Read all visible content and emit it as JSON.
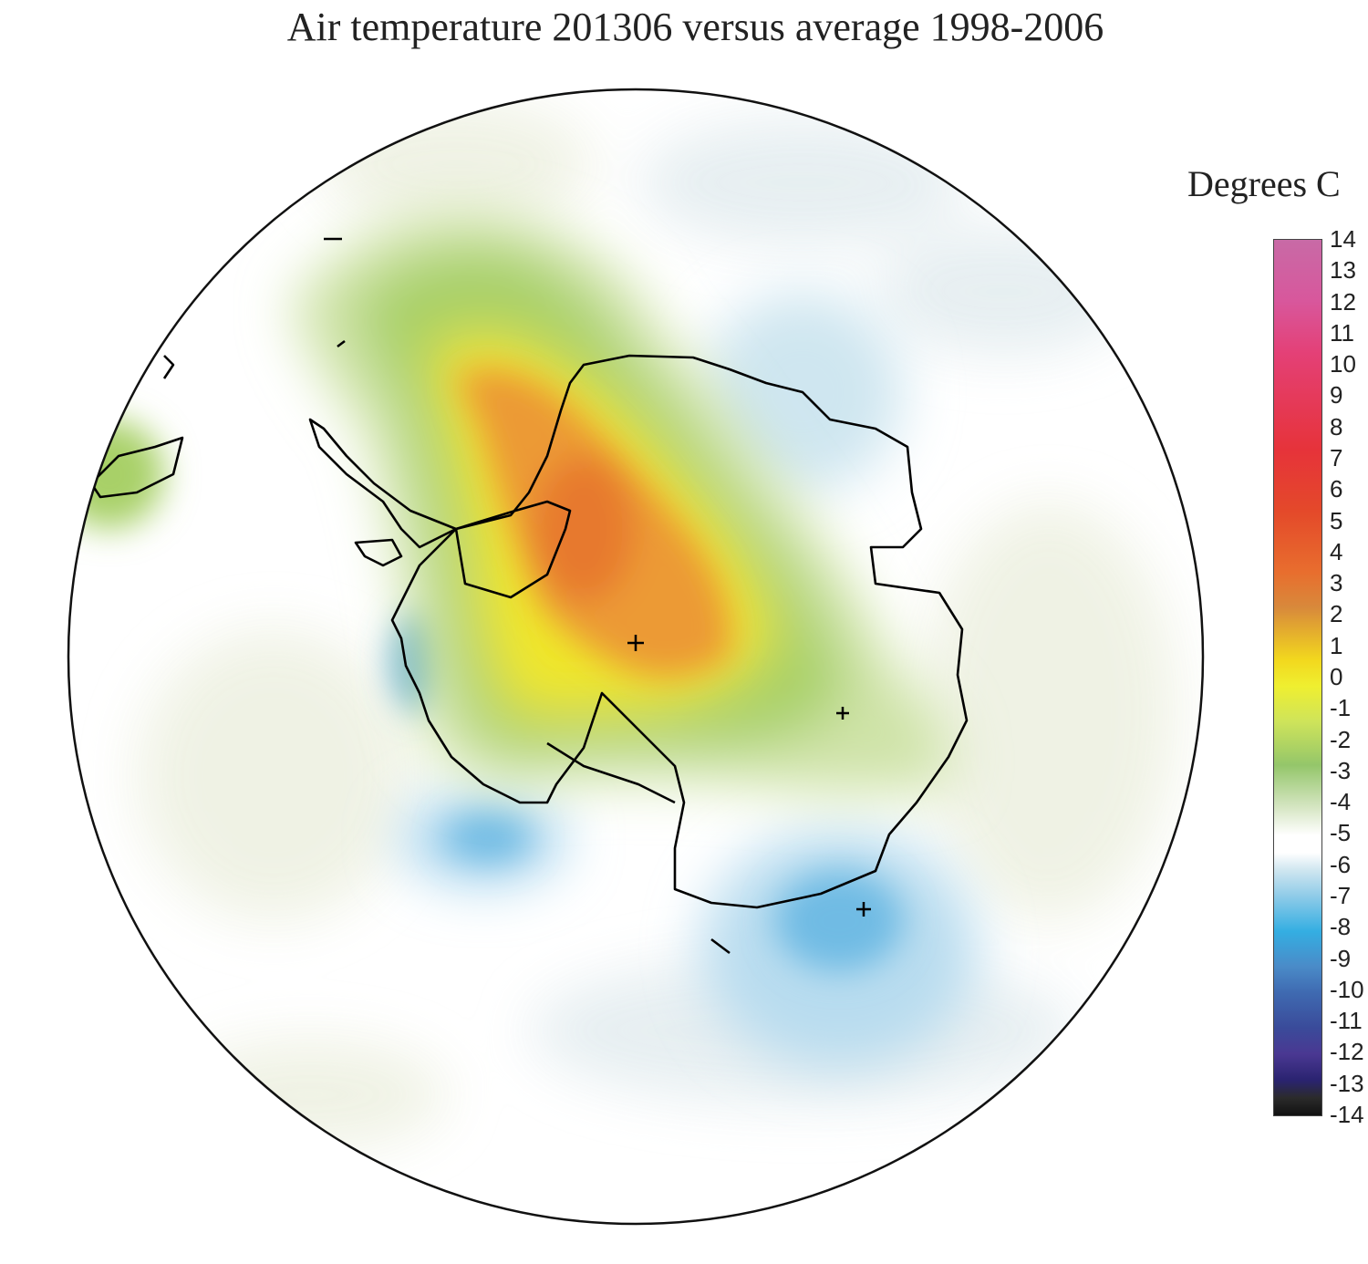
{
  "title": "Air temperature 201306 versus average 1998-2006",
  "units_label": "Degrees C",
  "legend": {
    "ticks": [
      "14",
      "13",
      "12",
      "11",
      "10",
      "9",
      "8",
      "7",
      "6",
      "5",
      "4",
      "3",
      "2",
      "1",
      "0",
      "-1",
      "-2",
      "-3",
      "-4",
      "-5",
      "-6",
      "-7",
      "-8",
      "-9",
      "-10",
      "-11",
      "-12",
      "-13",
      "-14"
    ],
    "range": [
      -14,
      14
    ]
  },
  "colors": {
    "warm_max": "#e86e2e",
    "warm_mid": "#f2d81e",
    "warm_low": "#94c66a",
    "neutral": "#ffffff",
    "cool_low": "#cfe6f0",
    "cool_mid": "#5fb3e0"
  },
  "markers": [
    "+",
    "+",
    "+"
  ]
}
